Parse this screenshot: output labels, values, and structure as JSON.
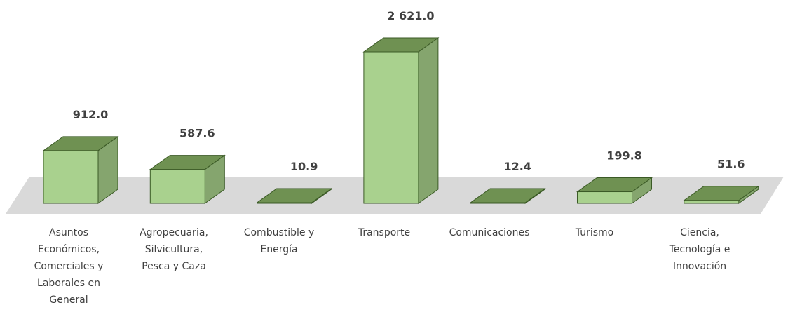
{
  "chart_data": {
    "type": "bar3d",
    "categories": [
      "Asuntos Económicos, Comerciales y Laborales en General",
      "Agropecuaria, Silvicultura, Pesca y Caza",
      "Combustible y Energía",
      "Transporte",
      "Comunicaciones",
      "Turismo",
      "Ciencia, Tecnología e Innovación"
    ],
    "values": [
      912.0,
      587.6,
      10.9,
      2621.0,
      12.4,
      199.8,
      51.6
    ],
    "value_labels": [
      "912.0",
      "587.6",
      "10.9",
      "2 621.0",
      "12.4",
      "199.8",
      "51.6"
    ],
    "color": "#a9d18e"
  }
}
